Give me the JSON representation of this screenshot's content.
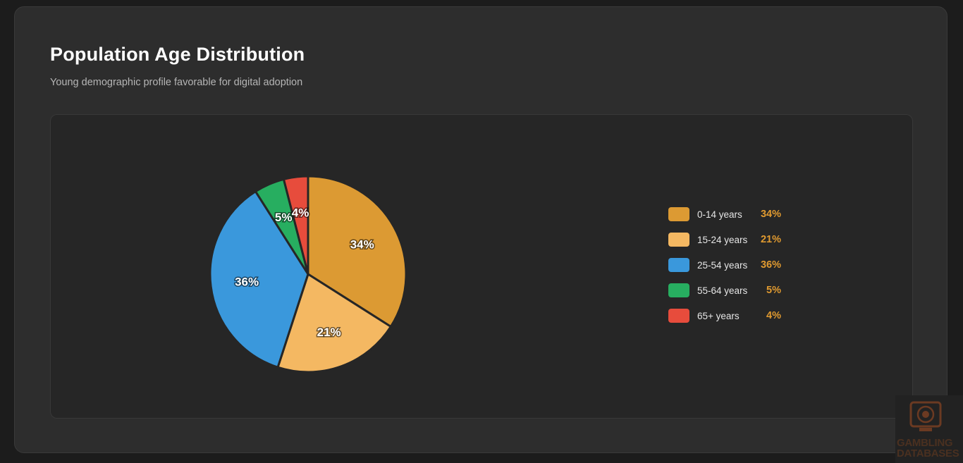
{
  "page": {
    "title": "Population Age Distribution",
    "subtitle": "Young demographic profile favorable for digital adoption"
  },
  "chart_data": {
    "type": "pie",
    "title": "Population Age Distribution",
    "subtitle": "Young demographic profile favorable for digital adoption",
    "categories": [
      "0-14 years",
      "15-24 years",
      "25-54 years",
      "55-64 years",
      "65+ years"
    ],
    "values": [
      34,
      21,
      36,
      5,
      4
    ],
    "labels": [
      "34%",
      "21%",
      "36%",
      "5%",
      "4%"
    ],
    "colors": [
      "#dc9a33",
      "#f4b862",
      "#3a98dc",
      "#27ae60",
      "#e74c3c"
    ],
    "start_angle": "12 o'clock, clockwise",
    "legend_placement": "right"
  },
  "legend": {
    "items": [
      {
        "label": "0-14 years",
        "value": "34%"
      },
      {
        "label": "15-24 years",
        "value": "21%"
      },
      {
        "label": "25-54 years",
        "value": "36%"
      },
      {
        "label": "55-64 years",
        "value": "5%"
      },
      {
        "label": "65+ years",
        "value": "4%"
      }
    ]
  },
  "watermark": {
    "line1": "GAMBLING",
    "line2": "DATABASES",
    "icon": "slot-machine-icon"
  }
}
